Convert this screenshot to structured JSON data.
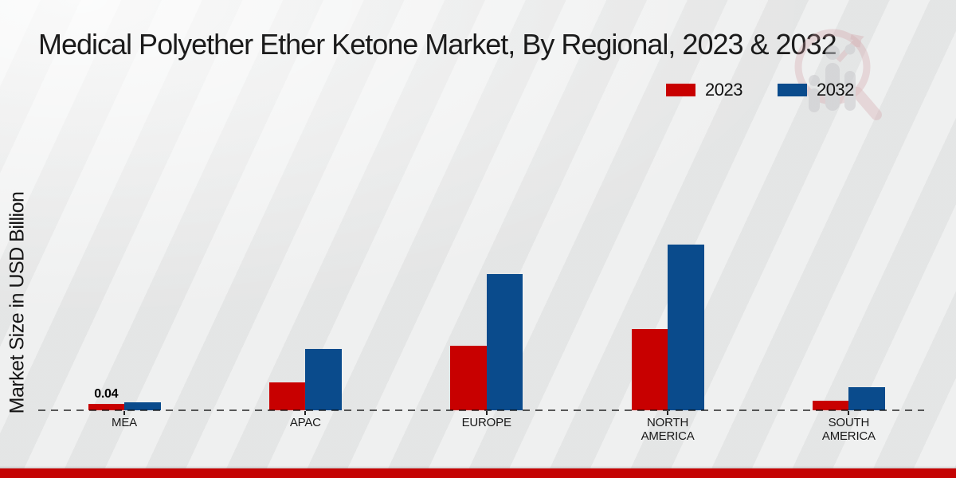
{
  "page": {
    "title": "Medical Polyether Ether Ketone Market, By Regional, 2023 & 2032"
  },
  "colors": {
    "series_2023": "#c80000",
    "series_2032": "#0a4b8c",
    "footer_bar": "#c40404",
    "title_text": "#1b1b1b",
    "background": "#e9eaea"
  },
  "legend": {
    "items": [
      {
        "label": "2023",
        "color": "#c80000"
      },
      {
        "label": "2032",
        "color": "#0a4b8c"
      }
    ]
  },
  "watermark": {
    "icon": "magnifier-bar-chart-logo-watermark"
  },
  "chart_data": {
    "type": "bar",
    "title": "Medical Polyether Ether Ketone Market, By Regional, 2023 & 2032",
    "xlabel": "",
    "ylabel": "Market Size in USD Billion",
    "unit": "USD Billion",
    "categories": [
      "MEA",
      "APAC",
      "EUROPE",
      "NORTH AMERICA",
      "SOUTH AMERICA"
    ],
    "series": [
      {
        "name": "2023",
        "color": "#c80000",
        "values": [
          0.04,
          0.17,
          0.39,
          0.49,
          0.06
        ]
      },
      {
        "name": "2032",
        "color": "#0a4b8c",
        "values": [
          0.05,
          0.37,
          0.82,
          1.0,
          0.14
        ]
      }
    ],
    "annotations": [
      {
        "category": "MEA",
        "series": "2023",
        "text": "0.04"
      }
    ],
    "gridlines": false,
    "y_axis_ticks_visible": false,
    "legend_position": "top-right",
    "baseline_style": "dashed"
  }
}
